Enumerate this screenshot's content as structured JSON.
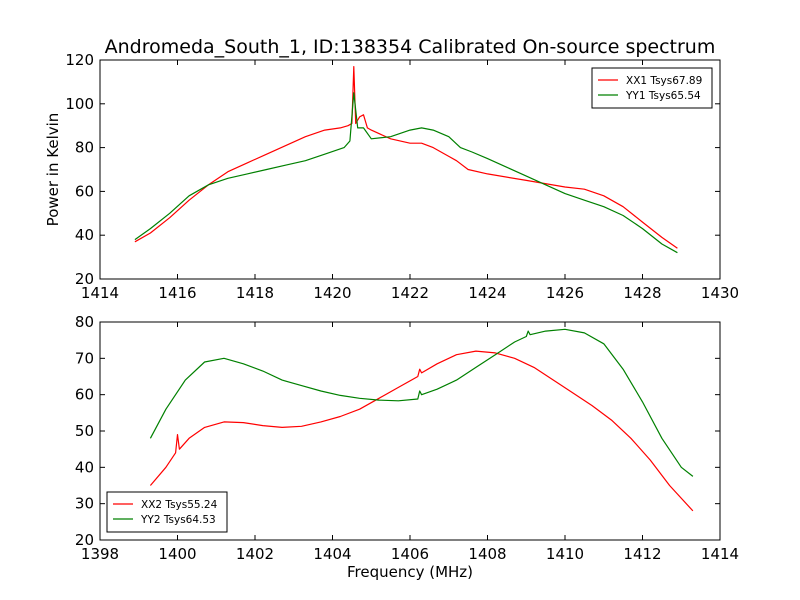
{
  "figure": {
    "title": "Andromeda_South_1, ID:138354 Calibrated On-source spectrum"
  },
  "chart_data": [
    {
      "type": "line",
      "title": "Andromeda_South_1, ID:138354 Calibrated On-source spectrum",
      "xlabel": "",
      "ylabel": "Power in Kelvin",
      "xlim": [
        1414,
        1430
      ],
      "ylim": [
        20,
        120
      ],
      "xticks": [
        1414,
        1416,
        1418,
        1420,
        1422,
        1424,
        1426,
        1428,
        1430
      ],
      "yticks": [
        20,
        40,
        60,
        80,
        100,
        120
      ],
      "grid": false,
      "legend": "top-right",
      "series": [
        {
          "name": "XX1 Tsys67.89",
          "color": "#ff0000",
          "points": [
            [
              1414.9,
              37
            ],
            [
              1415.3,
              41
            ],
            [
              1415.8,
              48
            ],
            [
              1416.3,
              56
            ],
            [
              1416.8,
              63
            ],
            [
              1417.3,
              69
            ],
            [
              1417.8,
              73
            ],
            [
              1418.3,
              77
            ],
            [
              1418.8,
              81
            ],
            [
              1419.3,
              85
            ],
            [
              1419.8,
              88
            ],
            [
              1420.2,
              89
            ],
            [
              1420.4,
              90
            ],
            [
              1420.5,
              91
            ],
            [
              1420.55,
              117
            ],
            [
              1420.6,
              91
            ],
            [
              1420.7,
              94
            ],
            [
              1420.8,
              95
            ],
            [
              1420.9,
              89
            ],
            [
              1421.0,
              88
            ],
            [
              1421.5,
              84
            ],
            [
              1422.0,
              82
            ],
            [
              1422.3,
              82
            ],
            [
              1422.6,
              80
            ],
            [
              1423.0,
              76
            ],
            [
              1423.2,
              74
            ],
            [
              1423.5,
              70
            ],
            [
              1424.0,
              68
            ],
            [
              1425.0,
              65
            ],
            [
              1426.0,
              62
            ],
            [
              1426.5,
              61
            ],
            [
              1427.0,
              58
            ],
            [
              1427.5,
              53
            ],
            [
              1428.0,
              46
            ],
            [
              1428.5,
              39
            ],
            [
              1428.9,
              34
            ]
          ]
        },
        {
          "name": "YY1 Tsys65.54",
          "color": "#008000",
          "points": [
            [
              1414.9,
              38
            ],
            [
              1415.3,
              43
            ],
            [
              1415.8,
              50
            ],
            [
              1416.3,
              58
            ],
            [
              1416.8,
              63
            ],
            [
              1417.3,
              66
            ],
            [
              1417.8,
              68
            ],
            [
              1418.3,
              70
            ],
            [
              1418.8,
              72
            ],
            [
              1419.3,
              74
            ],
            [
              1419.8,
              77
            ],
            [
              1420.3,
              80
            ],
            [
              1420.45,
              83
            ],
            [
              1420.55,
              105
            ],
            [
              1420.65,
              89
            ],
            [
              1420.8,
              89
            ],
            [
              1421.0,
              84
            ],
            [
              1421.5,
              85
            ],
            [
              1422.0,
              88
            ],
            [
              1422.3,
              89
            ],
            [
              1422.6,
              88
            ],
            [
              1423.0,
              85
            ],
            [
              1423.3,
              80
            ],
            [
              1423.6,
              78
            ],
            [
              1424.0,
              75
            ],
            [
              1424.5,
              71
            ],
            [
              1425.0,
              67
            ],
            [
              1425.5,
              63
            ],
            [
              1426.0,
              59
            ],
            [
              1426.5,
              56
            ],
            [
              1427.0,
              53
            ],
            [
              1427.5,
              49
            ],
            [
              1428.0,
              43
            ],
            [
              1428.5,
              36
            ],
            [
              1428.9,
              32
            ]
          ]
        }
      ]
    },
    {
      "type": "line",
      "title": "",
      "xlabel": "Frequency (MHz)",
      "ylabel": "",
      "xlim": [
        1398,
        1414
      ],
      "ylim": [
        20,
        80
      ],
      "xticks": [
        1398,
        1400,
        1402,
        1404,
        1406,
        1408,
        1410,
        1412,
        1414
      ],
      "yticks": [
        20,
        30,
        40,
        50,
        60,
        70,
        80
      ],
      "grid": false,
      "legend": "bottom-left",
      "series": [
        {
          "name": "XX2 Tsys55.24",
          "color": "#ff0000",
          "points": [
            [
              1399.3,
              35
            ],
            [
              1399.7,
              40
            ],
            [
              1399.95,
              44
            ],
            [
              1400.0,
              49
            ],
            [
              1400.05,
              45
            ],
            [
              1400.3,
              48
            ],
            [
              1400.7,
              51
            ],
            [
              1401.2,
              52.5
            ],
            [
              1401.7,
              52.3
            ],
            [
              1402.2,
              51.5
            ],
            [
              1402.7,
              51
            ],
            [
              1403.2,
              51.3
            ],
            [
              1403.7,
              52.5
            ],
            [
              1404.2,
              54
            ],
            [
              1404.7,
              56
            ],
            [
              1405.2,
              59
            ],
            [
              1405.7,
              62
            ],
            [
              1406.2,
              65
            ],
            [
              1406.25,
              67
            ],
            [
              1406.3,
              66
            ],
            [
              1406.7,
              68.5
            ],
            [
              1407.2,
              71
            ],
            [
              1407.7,
              72
            ],
            [
              1408.2,
              71.5
            ],
            [
              1408.7,
              70
            ],
            [
              1409.2,
              67.5
            ],
            [
              1409.7,
              64
            ],
            [
              1410.2,
              60.5
            ],
            [
              1410.7,
              57
            ],
            [
              1411.2,
              53
            ],
            [
              1411.7,
              48
            ],
            [
              1412.2,
              42
            ],
            [
              1412.7,
              35
            ],
            [
              1413.3,
              28
            ]
          ]
        },
        {
          "name": "YY2 Tsys64.53",
          "color": "#008000",
          "points": [
            [
              1399.3,
              48
            ],
            [
              1399.7,
              56
            ],
            [
              1400.2,
              64
            ],
            [
              1400.7,
              69
            ],
            [
              1401.2,
              70
            ],
            [
              1401.7,
              68.5
            ],
            [
              1402.2,
              66.5
            ],
            [
              1402.7,
              64
            ],
            [
              1403.2,
              62.5
            ],
            [
              1403.7,
              61
            ],
            [
              1404.2,
              59.8
            ],
            [
              1404.7,
              59
            ],
            [
              1405.2,
              58.5
            ],
            [
              1405.7,
              58.3
            ],
            [
              1406.2,
              58.8
            ],
            [
              1406.25,
              61
            ],
            [
              1406.3,
              60
            ],
            [
              1406.7,
              61.5
            ],
            [
              1407.2,
              64
            ],
            [
              1407.7,
              67.5
            ],
            [
              1408.2,
              71
            ],
            [
              1408.7,
              74.5
            ],
            [
              1409.0,
              76
            ],
            [
              1409.05,
              77.5
            ],
            [
              1409.1,
              76.5
            ],
            [
              1409.5,
              77.5
            ],
            [
              1410.0,
              78
            ],
            [
              1410.5,
              77
            ],
            [
              1411.0,
              74
            ],
            [
              1411.5,
              67
            ],
            [
              1412.0,
              58
            ],
            [
              1412.5,
              48
            ],
            [
              1413.0,
              40
            ],
            [
              1413.3,
              37.5
            ]
          ]
        }
      ]
    }
  ]
}
